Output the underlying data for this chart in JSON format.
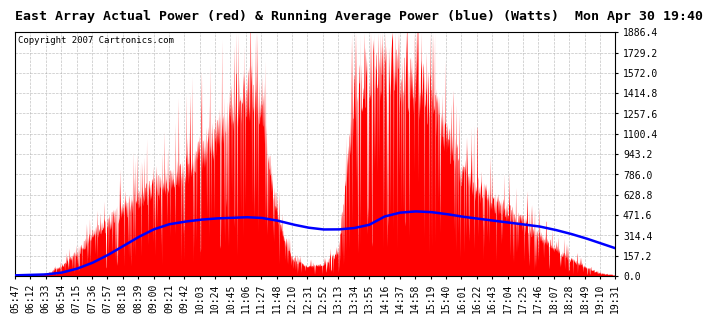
{
  "title": "East Array Actual Power (red) & Running Average Power (blue) (Watts)  Mon Apr 30 19:40",
  "copyright": "Copyright 2007 Cartronics.com",
  "ymin": 0.0,
  "ymax": 1886.4,
  "yticks": [
    0.0,
    157.2,
    314.4,
    471.6,
    628.8,
    786.0,
    943.2,
    1100.4,
    1257.6,
    1414.8,
    1572.0,
    1729.2,
    1886.4
  ],
  "xtick_labels": [
    "05:47",
    "06:12",
    "06:33",
    "06:54",
    "07:15",
    "07:36",
    "07:57",
    "08:18",
    "08:39",
    "09:00",
    "09:21",
    "09:42",
    "10:03",
    "10:24",
    "10:45",
    "11:06",
    "11:27",
    "11:48",
    "12:10",
    "12:31",
    "12:52",
    "13:13",
    "13:34",
    "13:55",
    "14:16",
    "14:37",
    "14:58",
    "15:19",
    "15:40",
    "16:01",
    "16:22",
    "16:43",
    "17:04",
    "17:25",
    "17:46",
    "18:07",
    "18:28",
    "18:49",
    "19:10",
    "19:31"
  ],
  "bg_color": "#ffffff",
  "plot_bg_color": "#ffffff",
  "grid_color": "#aaaaaa",
  "actual_color": "#ff0000",
  "average_color": "#0000ff",
  "title_fontsize": 9.5,
  "copyright_fontsize": 6.5,
  "tick_fontsize": 7,
  "actual_envelope": [
    5,
    8,
    20,
    80,
    200,
    350,
    450,
    580,
    680,
    750,
    820,
    900,
    1050,
    1200,
    1450,
    1600,
    1500,
    500,
    150,
    80,
    100,
    200,
    1500,
    1750,
    1800,
    1700,
    1650,
    1500,
    1200,
    900,
    750,
    650,
    550,
    450,
    350,
    250,
    150,
    80,
    30,
    10
  ],
  "avg_profile": [
    5,
    8,
    12,
    25,
    55,
    100,
    160,
    230,
    300,
    360,
    400,
    420,
    435,
    445,
    450,
    455,
    450,
    430,
    400,
    375,
    360,
    360,
    370,
    395,
    460,
    490,
    500,
    495,
    480,
    460,
    445,
    430,
    415,
    400,
    385,
    360,
    330,
    295,
    255,
    215
  ]
}
